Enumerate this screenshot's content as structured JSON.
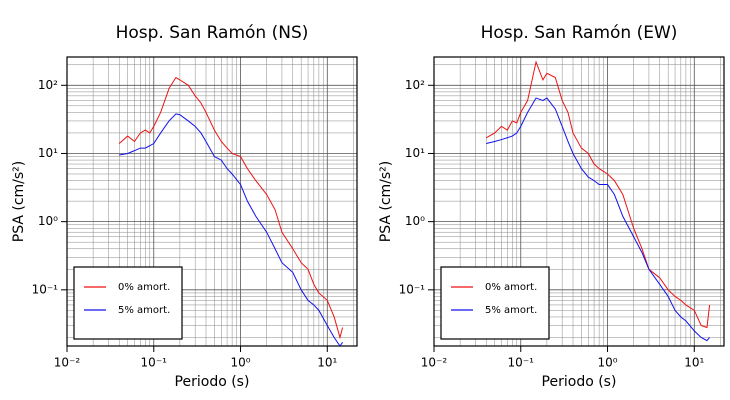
{
  "chart_data": [
    {
      "type": "line",
      "title": "Hosp. San Ramón (NS)",
      "x_label": "Periodo (s)",
      "y_label": "PSA (cm/s²)",
      "xscale": "log",
      "yscale": "log",
      "grid": true,
      "minor_grid": true,
      "legend": "lower left",
      "xlim": [
        0.01,
        22
      ],
      "ylim": [
        0.015,
        260
      ],
      "xticks": [
        {
          "value": 0.01,
          "label": "10⁻²"
        },
        {
          "value": 0.1,
          "label": "10⁻¹"
        },
        {
          "value": 1,
          "label": "10⁰"
        },
        {
          "value": 10,
          "label": "10¹"
        }
      ],
      "yticks": [
        {
          "value": 0.1,
          "label": "10⁻¹"
        },
        {
          "value": 1,
          "label": "10⁰"
        },
        {
          "value": 10,
          "label": "10¹"
        },
        {
          "value": 100,
          "label": "10²"
        }
      ],
      "x": [
        0.04,
        0.05,
        0.06,
        0.07,
        0.08,
        0.09,
        0.1,
        0.12,
        0.15,
        0.18,
        0.2,
        0.25,
        0.3,
        0.35,
        0.4,
        0.5,
        0.6,
        0.7,
        0.8,
        1,
        1.2,
        1.5,
        2,
        2.5,
        3,
        4,
        5,
        6,
        7,
        8,
        10,
        12,
        14,
        15
      ],
      "series": [
        {
          "name": "0% amort.",
          "color": "#ee1111",
          "values": [
            14,
            18,
            15,
            20,
            22,
            20,
            25,
            40,
            90,
            130,
            120,
            100,
            70,
            55,
            40,
            22,
            15,
            12,
            10,
            9,
            6,
            4,
            2.5,
            1.5,
            0.7,
            0.4,
            0.25,
            0.2,
            0.12,
            0.09,
            0.07,
            0.04,
            0.02,
            0.028
          ]
        },
        {
          "name": "5% amort.",
          "color": "#1111ee",
          "values": [
            9.5,
            10,
            11,
            12,
            12,
            13,
            14,
            20,
            30,
            38,
            37,
            30,
            25,
            20,
            15,
            9,
            8,
            6,
            5,
            3.5,
            2,
            1.2,
            0.7,
            0.4,
            0.25,
            0.18,
            0.1,
            0.07,
            0.06,
            0.05,
            0.03,
            0.02,
            0.015,
            0.017
          ]
        }
      ]
    },
    {
      "type": "line",
      "title": "Hosp. San Ramón (EW)",
      "x_label": "Periodo (s)",
      "y_label": "PSA (cm/s²)",
      "xscale": "log",
      "yscale": "log",
      "grid": true,
      "minor_grid": true,
      "legend": "lower left",
      "xlim": [
        0.01,
        22
      ],
      "ylim": [
        0.015,
        260
      ],
      "xticks": [
        {
          "value": 0.01,
          "label": "10⁻²"
        },
        {
          "value": 0.1,
          "label": "10⁻¹"
        },
        {
          "value": 1,
          "label": "10⁰"
        },
        {
          "value": 10,
          "label": "10¹"
        }
      ],
      "yticks": [
        {
          "value": 0.1,
          "label": "10⁻¹"
        },
        {
          "value": 1,
          "label": "10⁰"
        },
        {
          "value": 10,
          "label": "10¹"
        },
        {
          "value": 100,
          "label": "10²"
        }
      ],
      "x": [
        0.04,
        0.05,
        0.06,
        0.07,
        0.08,
        0.09,
        0.1,
        0.12,
        0.15,
        0.18,
        0.2,
        0.25,
        0.3,
        0.35,
        0.4,
        0.5,
        0.6,
        0.7,
        0.8,
        1,
        1.2,
        1.5,
        2,
        2.5,
        3,
        4,
        5,
        6,
        7,
        8,
        10,
        12,
        14,
        15
      ],
      "series": [
        {
          "name": "0% amort.",
          "color": "#ee1111",
          "values": [
            17,
            20,
            25,
            22,
            30,
            28,
            40,
            60,
            220,
            120,
            150,
            130,
            60,
            40,
            20,
            12,
            10,
            7,
            6,
            5,
            4,
            2.5,
            0.8,
            0.4,
            0.2,
            0.15,
            0.1,
            0.08,
            0.07,
            0.06,
            0.05,
            0.03,
            0.028,
            0.06
          ]
        },
        {
          "name": "5% amort.",
          "color": "#1111ee",
          "values": [
            14,
            15,
            16,
            17,
            18,
            20,
            25,
            40,
            65,
            60,
            65,
            45,
            25,
            15,
            10,
            6,
            4.5,
            4,
            3.5,
            3.5,
            2.5,
            1.2,
            0.6,
            0.35,
            0.2,
            0.12,
            0.08,
            0.05,
            0.04,
            0.035,
            0.025,
            0.02,
            0.018,
            0.02
          ]
        }
      ]
    }
  ]
}
